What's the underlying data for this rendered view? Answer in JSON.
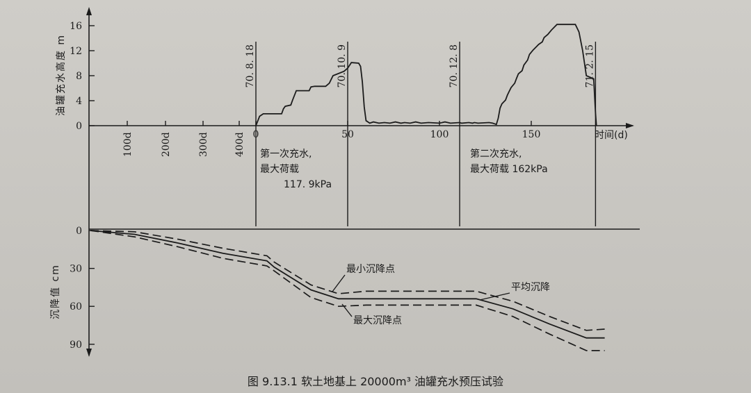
{
  "chart_data": {
    "type": "line",
    "caption": "图 9.13.1   软土地基上 20000m³ 油罐充水预压试验",
    "top": {
      "ylabel": "油罐充水高度 m",
      "yticks": [
        0,
        4,
        8,
        12,
        16
      ],
      "ylim": [
        0,
        16
      ],
      "xlabel": "时间(d)",
      "pre_ticks": [
        "100d",
        "200d",
        "300d",
        "400d"
      ],
      "xticks": [
        0,
        50,
        100,
        150
      ],
      "series": [
        {
          "name": "",
          "x": [
            0,
            2,
            4,
            14,
            15,
            16,
            19,
            20,
            22,
            29,
            30,
            32,
            38,
            40,
            42,
            48,
            50,
            52,
            56,
            57,
            58,
            59,
            60,
            62,
            64,
            67,
            70,
            73,
            76,
            79,
            81,
            84,
            87,
            90,
            94,
            100,
            103,
            106,
            111,
            112,
            116,
            118,
            119,
            121,
            127,
            129,
            130,
            131,
            132,
            133,
            134,
            136,
            137,
            138,
            139,
            141,
            142,
            143,
            145,
            146,
            148,
            149,
            151,
            153,
            154,
            156,
            157,
            159,
            161,
            164,
            167,
            169,
            171,
            174,
            176,
            178,
            180,
            184,
            185,
            185.5
          ],
          "y": [
            0,
            1.5,
            1.9,
            1.9,
            2.7,
            3.1,
            3.3,
            4.1,
            5.6,
            5.6,
            6.2,
            6.3,
            6.3,
            6.8,
            8.0,
            8.7,
            9.2,
            10.1,
            10.0,
            9.5,
            7.0,
            3.0,
            0.8,
            0.4,
            0.6,
            0.4,
            0.5,
            0.4,
            0.6,
            0.4,
            0.5,
            0.4,
            0.6,
            0.4,
            0.5,
            0.4,
            0.6,
            0.4,
            0.5,
            0.4,
            0.5,
            0.4,
            0.5,
            0.4,
            0.5,
            0.4,
            0.3,
            0.2,
            1.2,
            2.8,
            3.5,
            4.1,
            4.9,
            5.5,
            6.1,
            6.8,
            7.6,
            8.3,
            8.8,
            9.7,
            10.5,
            11.4,
            12.1,
            12.7,
            13.0,
            13.4,
            14.1,
            14.6,
            15.3,
            16.2,
            16.2,
            16.2,
            16.2,
            16.2,
            15.0,
            12.0,
            8.0,
            7.5,
            2.0,
            0.0
          ]
        }
      ],
      "annotations": [
        {
          "text": "70. 8. 18",
          "x": 0
        },
        {
          "text": "70. 10. 9",
          "x": 50
        },
        {
          "text": "70. 12. 8",
          "x": 111
        },
        {
          "text": "71. 2. 15",
          "x": 185
        }
      ],
      "notes": [
        {
          "lines": [
            "第一次充水,",
            "最大荷载",
            "117. 9kPa"
          ]
        },
        {
          "lines": [
            "第二次充水,",
            "最大荷载 162kPa"
          ]
        }
      ]
    },
    "bottom": {
      "ylabel": "沉降值 cm",
      "yticks": [
        0,
        30,
        60,
        90
      ],
      "ylim": [
        0,
        90
      ],
      "series": [
        {
          "name": "平均沉降",
          "t": [
            -90,
            -70,
            -50,
            -30,
            -10,
            10,
            30,
            45,
            60,
            80,
            100,
            120,
            140,
            160,
            180,
            190
          ],
          "y": [
            0,
            3,
            10,
            18,
            24,
            29,
            47,
            54,
            54,
            54,
            54,
            54,
            62,
            74,
            85,
            85
          ]
        },
        {
          "name": "最小沉降点",
          "t": [
            -90,
            -70,
            -50,
            -30,
            -10,
            10,
            30,
            45,
            60,
            80,
            100,
            120,
            140,
            160,
            180,
            190
          ],
          "y": [
            0,
            1,
            7,
            14,
            20,
            25,
            43,
            50,
            48,
            48,
            48,
            48,
            56,
            68,
            79,
            78
          ]
        },
        {
          "name": "最大沉降点",
          "t": [
            -90,
            -70,
            -50,
            -30,
            -10,
            10,
            30,
            45,
            60,
            80,
            100,
            120,
            140,
            160,
            180,
            190
          ],
          "y": [
            0,
            5,
            13,
            22,
            28,
            32,
            53,
            60,
            59,
            59,
            59,
            59,
            68,
            82,
            95,
            95
          ]
        }
      ],
      "labels": [
        {
          "text": "最小沉降点"
        },
        {
          "text": "平均沉降"
        },
        {
          "text": "最大沉降点"
        }
      ]
    }
  }
}
